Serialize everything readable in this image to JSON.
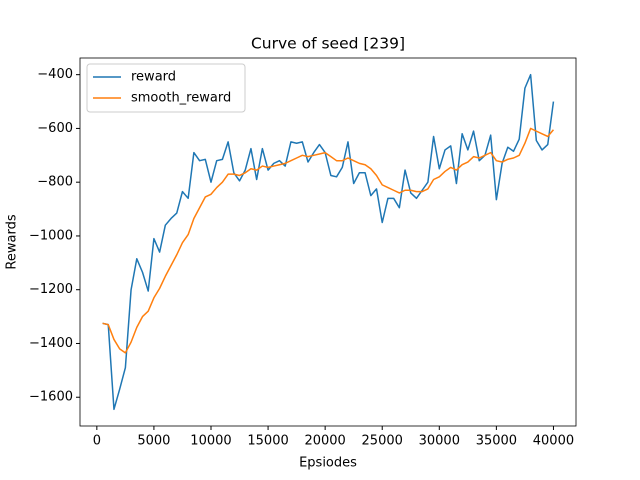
{
  "chart_data": {
    "type": "line",
    "title": "Curve of seed [239]",
    "xlabel": "Epsiodes",
    "ylabel": "Rewards",
    "x": [
      500,
      1000,
      1500,
      2000,
      2500,
      3000,
      3500,
      4000,
      4500,
      5000,
      5500,
      6000,
      6500,
      7000,
      7500,
      8000,
      8500,
      9000,
      9500,
      10000,
      10500,
      11000,
      11500,
      12000,
      12500,
      13000,
      13500,
      14000,
      14500,
      15000,
      15500,
      16000,
      16500,
      17000,
      17500,
      18000,
      18500,
      19000,
      19500,
      20000,
      20500,
      21000,
      21500,
      22000,
      22500,
      23000,
      23500,
      24000,
      24500,
      25000,
      25500,
      26000,
      26500,
      27000,
      27500,
      28000,
      28500,
      29000,
      29500,
      30000,
      30500,
      31000,
      31500,
      32000,
      32500,
      33000,
      33500,
      34000,
      34500,
      35000,
      35500,
      36000,
      36500,
      37000,
      37500,
      38000,
      38500,
      39000,
      39500,
      40000
    ],
    "series": [
      {
        "name": "reward",
        "color": "#1f77b4",
        "values": [
          -1325,
          -1330,
          -1645,
          -1570,
          -1490,
          -1200,
          -1085,
          -1135,
          -1205,
          -1010,
          -1060,
          -960,
          -935,
          -915,
          -835,
          -860,
          -690,
          -720,
          -715,
          -800,
          -720,
          -715,
          -650,
          -765,
          -795,
          -755,
          -675,
          -790,
          -675,
          -755,
          -730,
          -720,
          -740,
          -650,
          -655,
          -650,
          -725,
          -690,
          -660,
          -690,
          -775,
          -780,
          -745,
          -650,
          -805,
          -765,
          -765,
          -850,
          -825,
          -950,
          -860,
          -860,
          -895,
          -755,
          -840,
          -860,
          -830,
          -800,
          -630,
          -750,
          -680,
          -665,
          -805,
          -620,
          -680,
          -610,
          -720,
          -700,
          -625,
          -865,
          -730,
          -670,
          -685,
          -640,
          -450,
          -400,
          -645,
          -680,
          -660,
          -500
        ]
      },
      {
        "name": "smooth_reward",
        "color": "#ff7f0e",
        "values": [
          -1325,
          -1330,
          -1385,
          -1420,
          -1435,
          -1395,
          -1340,
          -1300,
          -1280,
          -1230,
          -1195,
          -1150,
          -1110,
          -1070,
          -1025,
          -995,
          -935,
          -895,
          -855,
          -845,
          -820,
          -800,
          -770,
          -770,
          -775,
          -765,
          -750,
          -755,
          -740,
          -745,
          -740,
          -735,
          -730,
          -720,
          -710,
          -700,
          -705,
          -700,
          -695,
          -690,
          -705,
          -720,
          -720,
          -710,
          -720,
          -730,
          -735,
          -750,
          -775,
          -810,
          -820,
          -830,
          -840,
          -830,
          -830,
          -835,
          -835,
          -825,
          -790,
          -780,
          -760,
          -745,
          -755,
          -735,
          -725,
          -705,
          -710,
          -700,
          -690,
          -720,
          -725,
          -715,
          -710,
          -700,
          -655,
          -600,
          -610,
          -620,
          -630,
          -605
        ]
      }
    ],
    "xlim": [
      -1475,
      41975
    ],
    "ylim": [
      -1707,
      -338
    ],
    "xticks": [
      0,
      5000,
      10000,
      15000,
      20000,
      25000,
      30000,
      35000,
      40000
    ],
    "yticks": [
      {
        "value": -1600,
        "label": "−1600"
      },
      {
        "value": -1400,
        "label": "−1400"
      },
      {
        "value": -1200,
        "label": "−1200"
      },
      {
        "value": -1000,
        "label": "−1000"
      },
      {
        "value": -800,
        "label": "−800"
      },
      {
        "value": -600,
        "label": "−600"
      },
      {
        "value": -400,
        "label": "−400"
      }
    ],
    "legend": "upper left"
  }
}
